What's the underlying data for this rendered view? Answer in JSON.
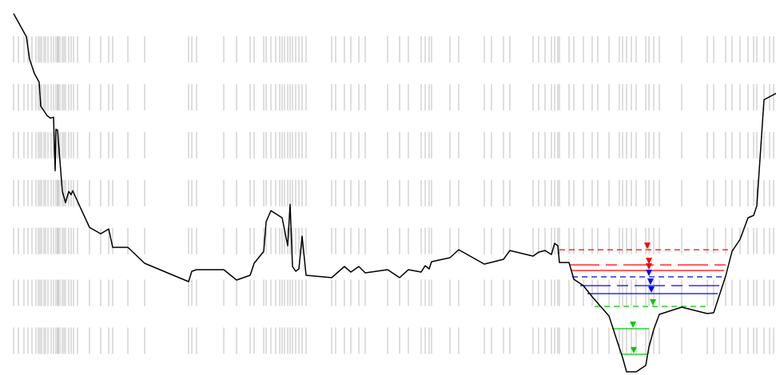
{
  "colors": {
    "background": "#ffffff",
    "profile": "#000000",
    "station_ticks": "#bdbdbd",
    "level_red": "#ff0000",
    "level_blue": "#0000ff",
    "level_green": "#00cc00"
  },
  "profile": {
    "note": "",
    "points": [
      [
        17,
        17
      ],
      [
        33,
        46
      ],
      [
        37,
        74
      ],
      [
        43,
        92
      ],
      [
        49,
        103
      ],
      [
        51,
        133
      ],
      [
        59,
        145
      ],
      [
        63,
        148
      ],
      [
        67,
        147
      ],
      [
        69,
        214
      ],
      [
        70,
        162
      ],
      [
        72,
        163
      ],
      [
        78,
        240
      ],
      [
        82,
        254
      ],
      [
        86,
        240
      ],
      [
        89,
        244
      ],
      [
        91,
        239
      ],
      [
        95,
        248
      ],
      [
        112,
        285
      ],
      [
        126,
        293
      ],
      [
        136,
        287
      ],
      [
        141,
        310
      ],
      [
        160,
        310
      ],
      [
        181,
        330
      ],
      [
        236,
        353
      ],
      [
        240,
        340
      ],
      [
        246,
        338
      ],
      [
        280,
        338
      ],
      [
        296,
        351
      ],
      [
        313,
        345
      ],
      [
        318,
        330
      ],
      [
        330,
        315
      ],
      [
        333,
        278
      ],
      [
        339,
        264
      ],
      [
        353,
        273
      ],
      [
        360,
        308
      ],
      [
        363,
        256
      ],
      [
        366,
        334
      ],
      [
        370,
        340
      ],
      [
        374,
        337
      ],
      [
        378,
        296
      ],
      [
        383,
        345
      ],
      [
        415,
        348
      ],
      [
        431,
        334
      ],
      [
        439,
        341
      ],
      [
        449,
        334
      ],
      [
        457,
        342
      ],
      [
        485,
        338
      ],
      [
        500,
        348
      ],
      [
        511,
        338
      ],
      [
        527,
        341
      ],
      [
        532,
        333
      ],
      [
        537,
        337
      ],
      [
        540,
        328
      ],
      [
        563,
        323
      ],
      [
        574,
        313
      ],
      [
        606,
        331
      ],
      [
        630,
        325
      ],
      [
        638,
        314
      ],
      [
        667,
        321
      ],
      [
        674,
        316
      ],
      [
        682,
        314
      ],
      [
        690,
        319
      ],
      [
        694,
        305
      ],
      [
        698,
        308
      ],
      [
        700,
        329
      ],
      [
        712,
        329
      ],
      [
        718,
        350
      ],
      [
        730,
        358
      ],
      [
        741,
        372
      ],
      [
        748,
        380
      ],
      [
        762,
        396
      ],
      [
        775,
        436
      ],
      [
        779,
        448
      ],
      [
        784,
        466
      ],
      [
        796,
        466
      ],
      [
        808,
        458
      ],
      [
        812,
        435
      ],
      [
        818,
        413
      ],
      [
        825,
        394
      ],
      [
        853,
        385
      ],
      [
        885,
        393
      ],
      [
        893,
        392
      ],
      [
        908,
        346
      ],
      [
        916,
        315
      ],
      [
        926,
        300
      ],
      [
        936,
        273
      ],
      [
        943,
        270
      ],
      [
        947,
        258
      ],
      [
        956,
        125
      ],
      [
        971,
        117
      ]
    ]
  },
  "ticks": {
    "note": "",
    "x": [
      17,
      23,
      30,
      35,
      40,
      45,
      48,
      50,
      52,
      55,
      57,
      60,
      64,
      67,
      70,
      72,
      73,
      75,
      78,
      80,
      82,
      86,
      89,
      92,
      97,
      112,
      126,
      136,
      141,
      160,
      181,
      236,
      240,
      246,
      280,
      296,
      313,
      318,
      330,
      333,
      339,
      345,
      350,
      353,
      356,
      360,
      363,
      366,
      370,
      374,
      378,
      383,
      415,
      420,
      431,
      439,
      449,
      457,
      485,
      500,
      511,
      527,
      532,
      537,
      540,
      563,
      574,
      606,
      615,
      630,
      638,
      667,
      674,
      682,
      690,
      694,
      698,
      700,
      712,
      718,
      730,
      741,
      748,
      762,
      775,
      779,
      784,
      790,
      796,
      808,
      812,
      818,
      825,
      853,
      885,
      893,
      908,
      916,
      926,
      936,
      943,
      947,
      956,
      963,
      968
    ],
    "y_top_levels": [
      60,
      120,
      180,
      240,
      300,
      365,
      425
    ],
    "segment_length": 45
  },
  "water_levels": [
    {
      "color_key": "level_red",
      "style": "dashed",
      "y": 313,
      "x1": 700,
      "x2": 918,
      "marker_x": 810
    },
    {
      "color_key": "level_red",
      "style": "dashdot",
      "y": 332,
      "x1": 712,
      "x2": 910,
      "marker_x": 812
    },
    {
      "color_key": "level_red",
      "style": "solid",
      "y": 339,
      "x1": 714,
      "x2": 906,
      "marker_x": 812
    },
    {
      "color_key": "level_blue",
      "style": "dashed",
      "y": 347,
      "x1": 716,
      "x2": 904,
      "marker_x": 812
    },
    {
      "color_key": "level_blue",
      "style": "dashdot",
      "y": 358,
      "x1": 726,
      "x2": 900,
      "marker_x": 814
    },
    {
      "color_key": "level_blue",
      "style": "solid",
      "y": 368,
      "x1": 735,
      "x2": 898,
      "marker_x": 815
    },
    {
      "color_key": "level_green",
      "style": "dashed",
      "y": 384,
      "x1": 744,
      "x2": 888,
      "marker_x": 817
    },
    {
      "color_key": "level_green",
      "style": "solid",
      "y": 412,
      "x1": 766,
      "x2": 812,
      "marker_x": 792
    },
    {
      "color_key": "level_green",
      "style": "solid",
      "y": 444,
      "x1": 777,
      "x2": 810,
      "marker_x": 793
    }
  ]
}
